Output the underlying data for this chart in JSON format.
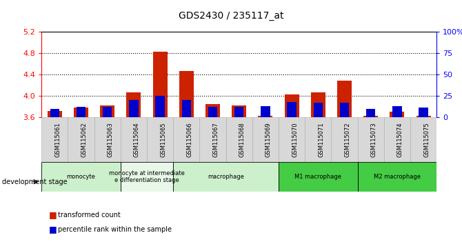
{
  "title": "GDS2430 / 235117_at",
  "samples": [
    "GSM115061",
    "GSM115062",
    "GSM115063",
    "GSM115064",
    "GSM115065",
    "GSM115066",
    "GSM115067",
    "GSM115068",
    "GSM115069",
    "GSM115070",
    "GSM115071",
    "GSM115072",
    "GSM115073",
    "GSM115074",
    "GSM115075"
  ],
  "red_values": [
    3.72,
    3.78,
    3.82,
    4.07,
    4.82,
    4.46,
    3.85,
    3.82,
    3.63,
    4.02,
    4.07,
    4.28,
    3.63,
    3.7,
    3.63
  ],
  "blue_percentiles": [
    10,
    12,
    12,
    20,
    25,
    20,
    12,
    12,
    13,
    18,
    17,
    17,
    10,
    13,
    11
  ],
  "ylim_left": [
    3.6,
    5.2
  ],
  "ylim_right": [
    0,
    100
  ],
  "yticks_left": [
    3.6,
    4.0,
    4.4,
    4.8,
    5.2
  ],
  "yticks_right": [
    0,
    25,
    50,
    75,
    100
  ],
  "bar_base": 3.6,
  "groups": [
    {
      "label": "monocyte",
      "start": 0,
      "end": 3,
      "color": "#ccf0cc"
    },
    {
      "label": "monocyte at intermediate\ne differentiation stage",
      "start": 3,
      "end": 5,
      "color": "#e8f8e8"
    },
    {
      "label": "macrophage",
      "start": 5,
      "end": 9,
      "color": "#ccf0cc"
    },
    {
      "label": "M1 macrophage",
      "start": 9,
      "end": 12,
      "color": "#44cc44"
    },
    {
      "label": "M2 macrophage",
      "start": 12,
      "end": 15,
      "color": "#44cc44"
    }
  ],
  "red_color": "#cc2200",
  "blue_color": "#0000cc",
  "bar_width": 0.55,
  "blue_bar_width": 0.35
}
